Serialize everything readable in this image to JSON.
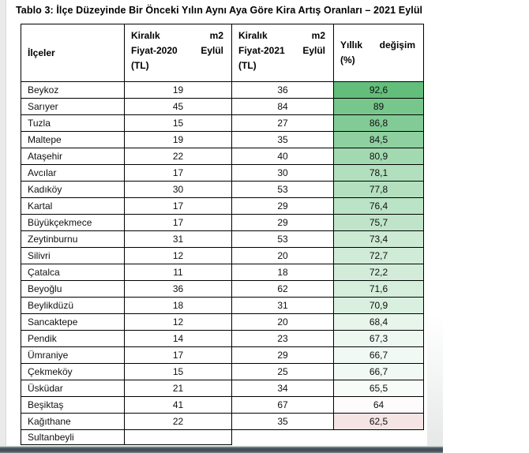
{
  "title": "Tablo 3: İlçe Düzeyinde Bir Önceki Yılın Aynı Aya Göre Kira Artış Oranları – 2021 Eylül",
  "table": {
    "headers": {
      "districts": "İlçeler",
      "price2020": {
        "l1a": "Kiralık",
        "l1b": "m2",
        "l2a": "Fiyat-2020",
        "l2b": "Eylül",
        "l3": "(TL)"
      },
      "price2021": {
        "l1a": "Kiralık",
        "l1b": "m2",
        "l2a": "Fiyat-2021",
        "l2b": "Eylül",
        "l3": "(TL)"
      },
      "change": {
        "l1a": "Yıllık",
        "l1b": "değişim",
        "l2": "(%)"
      }
    },
    "rows": [
      {
        "district": "Beykoz",
        "price_2020": "19",
        "price_2021": "36",
        "change": "92,6",
        "color": "#63BE7B"
      },
      {
        "district": "Sarıyer",
        "price_2020": "45",
        "price_2021": "84",
        "change": "89",
        "color": "#77C68C"
      },
      {
        "district": "Tuzla",
        "price_2020": "15",
        "price_2021": "27",
        "change": "86,8",
        "color": "#83CB96"
      },
      {
        "district": "Maltepe",
        "price_2020": "19",
        "price_2021": "35",
        "change": "84,5",
        "color": "#8FD0A0"
      },
      {
        "district": "Ataşehir",
        "price_2020": "22",
        "price_2021": "40",
        "change": "80,9",
        "color": "#A3D9B1"
      },
      {
        "district": "Avcılar",
        "price_2020": "17",
        "price_2021": "30",
        "change": "78,1",
        "color": "#B2DFBE"
      },
      {
        "district": "Kadıköy",
        "price_2020": "30",
        "price_2021": "53",
        "change": "77,8",
        "color": "#B4E0BF"
      },
      {
        "district": "Kartal",
        "price_2020": "17",
        "price_2021": "29",
        "change": "76,4",
        "color": "#BBE3C6"
      },
      {
        "district": "Büyükçekmece",
        "price_2020": "17",
        "price_2021": "29",
        "change": "75,7",
        "color": "#BFE4C9"
      },
      {
        "district": "Zeytinburnu",
        "price_2020": "31",
        "price_2021": "53",
        "change": "73,4",
        "color": "#CCEAD4"
      },
      {
        "district": "Silivri",
        "price_2020": "12",
        "price_2021": "20",
        "change": "72,7",
        "color": "#D0EBD7"
      },
      {
        "district": "Çatalca",
        "price_2020": "11",
        "price_2021": "18",
        "change": "72,2",
        "color": "#D2ECD9"
      },
      {
        "district": "Beyoğlu",
        "price_2020": "36",
        "price_2021": "62",
        "change": "71,6",
        "color": "#D6EEDC"
      },
      {
        "district": "Beylikdüzü",
        "price_2020": "18",
        "price_2021": "31",
        "change": "70,9",
        "color": "#D9EFDF"
      },
      {
        "district": "Sancaktepe",
        "price_2020": "12",
        "price_2021": "20",
        "change": "68,4",
        "color": "#E7F5EB"
      },
      {
        "district": "Pendik",
        "price_2020": "14",
        "price_2021": "23",
        "change": "67,3",
        "color": "#EDF8F0"
      },
      {
        "district": "Ümraniye",
        "price_2020": "17",
        "price_2021": "29",
        "change": "66,7",
        "color": "#F0F9F3"
      },
      {
        "district": "Çekmeköy",
        "price_2020": "15",
        "price_2021": "25",
        "change": "66,7",
        "color": "#F0F9F3"
      },
      {
        "district": "Üsküdar",
        "price_2020": "21",
        "price_2021": "34",
        "change": "65,5",
        "color": "#F7FCF8"
      },
      {
        "district": "Beşiktaş",
        "price_2020": "41",
        "price_2021": "67",
        "change": "64",
        "color": "#FDFBFB"
      },
      {
        "district": "Kağıthane",
        "price_2020": "22",
        "price_2021": "35",
        "change": "62,5",
        "color": "#F5E4E4"
      },
      {
        "district": "Sultanbeyli",
        "price_2020": "",
        "price_2021": "",
        "change": "",
        "color": "",
        "cutoff": true
      }
    ]
  },
  "colors": {
    "scale_max_green": "#63BE7B",
    "scale_min_pink": "#F5E4E4",
    "border": "#000000",
    "page_edge_strip": "#3E4A52",
    "left_margin_strip": "#EAEAEA"
  }
}
